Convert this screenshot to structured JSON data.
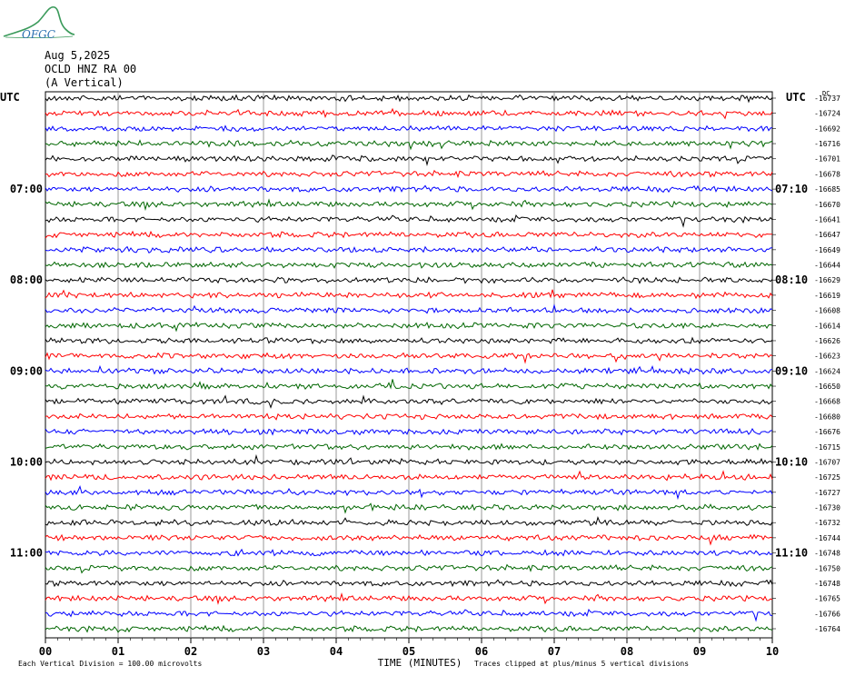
{
  "logo_text": "OFGC",
  "header": {
    "date": "Aug 5,2025",
    "station": "OCLD HNZ RA 00",
    "component": "(A Vertical)"
  },
  "tz_left": "UTC",
  "tz_right": "UTC",
  "dc_label": "DC",
  "footer": {
    "scale_note": "Each Vertical Division =  100.00 microvolts",
    "xlabel": "TIME (MINUTES)",
    "clip_note": "Traces clipped at plus/minus 5 vertical divisions"
  },
  "colors": {
    "trace_cycle": [
      "#000000",
      "#ff0000",
      "#0000ff",
      "#006600"
    ],
    "grid": "#7f7f7f",
    "logo": "#3a9a5a"
  },
  "chart_data": {
    "type": "line",
    "title": "OCLD HNZ RA 00",
    "xlabel": "TIME (MINUTES)",
    "xlim": [
      0,
      10
    ],
    "x_ticks": [
      "00",
      "01",
      "02",
      "03",
      "04",
      "05",
      "06",
      "07",
      "08",
      "09",
      "10"
    ],
    "row_count": 36,
    "left_time_labels": [
      {
        "row": 6,
        "label": "07:00"
      },
      {
        "row": 12,
        "label": "08:00"
      },
      {
        "row": 18,
        "label": "09:00"
      },
      {
        "row": 24,
        "label": "10:00"
      },
      {
        "row": 30,
        "label": "11:00"
      }
    ],
    "right_time_labels": [
      {
        "row": 6,
        "label": "07:10"
      },
      {
        "row": 12,
        "label": "08:10"
      },
      {
        "row": 18,
        "label": "09:10"
      },
      {
        "row": 24,
        "label": "10:10"
      },
      {
        "row": 30,
        "label": "11:10"
      }
    ],
    "dc_offsets": [
      "-16737",
      "-16724",
      "-16692",
      "-16716",
      "-16701",
      "-16678",
      "-16685",
      "-16670",
      "-16641",
      "-16647",
      "-16649",
      "-16644",
      "-16629",
      "-16619",
      "-16608",
      "-16614",
      "-16626",
      "-16623",
      "-16624",
      "-16650",
      "-16668",
      "-16680",
      "-16676",
      "-16715",
      "-16707",
      "-16725",
      "-16727",
      "-16730",
      "-16732",
      "-16744",
      "-16748",
      "-16750",
      "-16748",
      "-16765",
      "-16766",
      "-16764"
    ]
  }
}
